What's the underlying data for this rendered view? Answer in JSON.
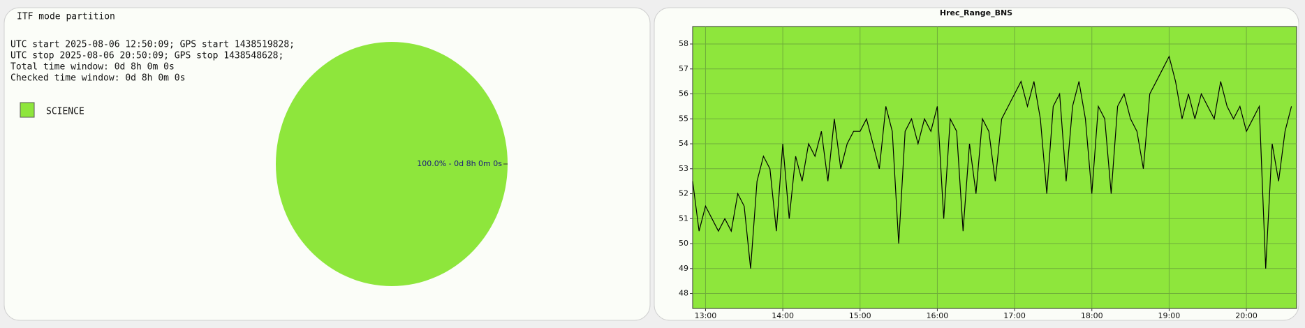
{
  "chart_data": [
    {
      "type": "pie",
      "title": "ITF mode partition",
      "info": [
        "UTC start 2025-08-06 12:50:09; GPS start 1438519828;",
        "UTC stop 2025-08-06 20:50:09; GPS stop 1438548628;",
        "Total time window: 0d 8h 0m 0s",
        "Checked time window: 0d 8h 0m 0s"
      ],
      "categories": [
        "SCIENCE"
      ],
      "values": [
        100
      ],
      "value_labels": [
        "100.0% - 0d 8h 0m 0s"
      ],
      "colors": [
        "#8ee63c"
      ]
    },
    {
      "type": "line",
      "title": "Hrec_Range_BNS",
      "color": "#000000",
      "background": "#8ee63c",
      "grid": true,
      "x": [
        "12:50",
        "12:55",
        "13:00",
        "13:05",
        "13:10",
        "13:15",
        "13:20",
        "13:25",
        "13:30",
        "13:35",
        "13:40",
        "13:45",
        "13:50",
        "13:55",
        "14:00",
        "14:05",
        "14:10",
        "14:15",
        "14:20",
        "14:25",
        "14:30",
        "14:35",
        "14:40",
        "14:45",
        "14:50",
        "14:55",
        "15:00",
        "15:05",
        "15:10",
        "15:15",
        "15:20",
        "15:25",
        "15:30",
        "15:35",
        "15:40",
        "15:45",
        "15:50",
        "15:55",
        "16:00",
        "16:05",
        "16:10",
        "16:15",
        "16:20",
        "16:25",
        "16:30",
        "16:35",
        "16:40",
        "16:45",
        "16:50",
        "16:55",
        "17:00",
        "17:05",
        "17:10",
        "17:15",
        "17:20",
        "17:25",
        "17:30",
        "17:35",
        "17:40",
        "17:45",
        "17:50",
        "17:55",
        "18:00",
        "18:05",
        "18:10",
        "18:15",
        "18:20",
        "18:25",
        "18:30",
        "18:35",
        "18:40",
        "18:45",
        "18:50",
        "18:55",
        "19:00",
        "19:05",
        "19:10",
        "19:15",
        "19:20",
        "19:25",
        "19:30",
        "19:35",
        "19:40",
        "19:45",
        "19:50",
        "19:55",
        "20:00",
        "20:05",
        "20:10",
        "20:15",
        "20:20",
        "20:25",
        "20:30",
        "20:35"
      ],
      "values": [
        52.5,
        50.5,
        51.5,
        51,
        50.5,
        51,
        50.5,
        52,
        51.5,
        49,
        52.5,
        53.5,
        53,
        50.5,
        54,
        51,
        53.5,
        52.5,
        54,
        53.5,
        54.5,
        52.5,
        55,
        53,
        54,
        54.5,
        54.5,
        55,
        54,
        53,
        55.5,
        54.5,
        50,
        54.5,
        55,
        54,
        55,
        54.5,
        55.5,
        51,
        55,
        54.5,
        50.5,
        54,
        52,
        55,
        54.5,
        52.5,
        55,
        55.5,
        56,
        56.5,
        55.5,
        56.5,
        55,
        52,
        55.5,
        56,
        52.5,
        55.5,
        56.5,
        55,
        52,
        55.5,
        55,
        52,
        55.5,
        56,
        55,
        54.5,
        53,
        56,
        56.5,
        57,
        57.5,
        56.5,
        55,
        56,
        55,
        56,
        55.5,
        55,
        56.5,
        55.5,
        55,
        55.5,
        54.5,
        55,
        55.5,
        49,
        54,
        52.5,
        54.5,
        55.5
      ],
      "xlim": [
        "12:50",
        "20:39"
      ],
      "xticks": [
        "13:00",
        "14:00",
        "15:00",
        "16:00",
        "17:00",
        "18:00",
        "19:00",
        "20:00"
      ],
      "ylim": [
        47.4,
        58.7
      ],
      "yticks": [
        48,
        49,
        50,
        51,
        52,
        53,
        54,
        55,
        56,
        57,
        58
      ]
    }
  ]
}
